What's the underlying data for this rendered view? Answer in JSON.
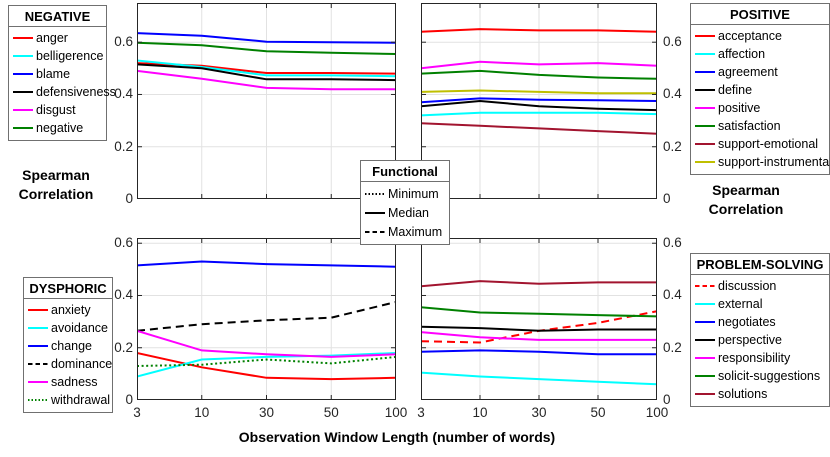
{
  "labels": {
    "ylabel_line1": "Spearman",
    "ylabel_line2": "Correlation",
    "xlabel": "Observation Window Length (number of words)"
  },
  "colors": {
    "red": "#ff0000",
    "cyan": "#00ffff",
    "blue": "#0000ff",
    "black": "#000000",
    "magenta": "#ff00ff",
    "green": "#008000",
    "dark_red": "#a2142f",
    "dark_yellow": "#bfbf00",
    "grid": "#e2e2e2",
    "axis": "#262626"
  },
  "chart_data": [
    {
      "id": "negative",
      "type": "line",
      "category": "NEGATIVE",
      "position": "top-left",
      "x": [
        3,
        10,
        30,
        50,
        100
      ],
      "x_scale": "equally-spaced-ticks",
      "ylim": [
        0,
        0.75
      ],
      "yticks": [
        0,
        0.2,
        0.4,
        0.6
      ],
      "ytick_side": "left",
      "xtick_labels_visible": false,
      "grid": true,
      "series": [
        {
          "name": "anger",
          "color": "#ff0000",
          "line_style": "solid",
          "values": [
            0.52,
            0.51,
            0.482,
            0.482,
            0.48
          ]
        },
        {
          "name": "belligerence",
          "color": "#00ffff",
          "line_style": "solid",
          "values": [
            0.53,
            0.505,
            0.473,
            0.473,
            0.47
          ]
        },
        {
          "name": "blame",
          "color": "#0000ff",
          "line_style": "solid",
          "values": [
            0.635,
            0.625,
            0.602,
            0.6,
            0.598
          ]
        },
        {
          "name": "defensiveness",
          "color": "#000000",
          "line_style": "solid",
          "values": [
            0.515,
            0.5,
            0.458,
            0.458,
            0.455
          ]
        },
        {
          "name": "disgust",
          "color": "#ff00ff",
          "line_style": "solid",
          "values": [
            0.49,
            0.46,
            0.425,
            0.42,
            0.42
          ]
        },
        {
          "name": "negative",
          "color": "#008000",
          "line_style": "solid",
          "values": [
            0.598,
            0.588,
            0.565,
            0.56,
            0.555
          ]
        }
      ]
    },
    {
      "id": "positive",
      "type": "line",
      "category": "POSITIVE",
      "position": "top-right",
      "x": [
        3,
        10,
        30,
        50,
        100
      ],
      "x_scale": "equally-spaced-ticks",
      "ylim": [
        0,
        0.75
      ],
      "yticks": [
        0,
        0.2,
        0.4,
        0.6
      ],
      "ytick_side": "right",
      "xtick_labels_visible": false,
      "grid": true,
      "series": [
        {
          "name": "acceptance",
          "color": "#ff0000",
          "line_style": "solid",
          "values": [
            0.64,
            0.65,
            0.645,
            0.645,
            0.64
          ]
        },
        {
          "name": "affection",
          "color": "#00ffff",
          "line_style": "solid",
          "values": [
            0.32,
            0.33,
            0.33,
            0.33,
            0.325
          ]
        },
        {
          "name": "agreement",
          "color": "#0000ff",
          "line_style": "solid",
          "values": [
            0.37,
            0.385,
            0.38,
            0.378,
            0.375
          ]
        },
        {
          "name": "define",
          "color": "#000000",
          "line_style": "solid",
          "values": [
            0.355,
            0.375,
            0.355,
            0.345,
            0.34
          ]
        },
        {
          "name": "positive",
          "color": "#ff00ff",
          "line_style": "solid",
          "values": [
            0.5,
            0.525,
            0.515,
            0.52,
            0.51
          ]
        },
        {
          "name": "satisfaction",
          "color": "#008000",
          "line_style": "solid",
          "values": [
            0.48,
            0.49,
            0.475,
            0.465,
            0.46
          ]
        },
        {
          "name": "support-emotional",
          "color": "#a2142f",
          "line_style": "solid",
          "values": [
            0.29,
            0.28,
            0.27,
            0.26,
            0.25
          ]
        },
        {
          "name": "support-instrumental",
          "color": "#bfbf00",
          "line_style": "solid",
          "values": [
            0.41,
            0.415,
            0.41,
            0.405,
            0.405
          ]
        }
      ]
    },
    {
      "id": "dysphoric",
      "type": "line",
      "category": "DYSPHORIC",
      "position": "bottom-left",
      "x": [
        3,
        10,
        30,
        50,
        100
      ],
      "x_scale": "equally-spaced-ticks",
      "ylim": [
        0,
        0.62
      ],
      "yticks": [
        0,
        0.2,
        0.4,
        0.6
      ],
      "ytick_side": "left",
      "xtick_labels_visible": true,
      "grid": true,
      "series": [
        {
          "name": "anxiety",
          "color": "#ff0000",
          "line_style": "solid",
          "values": [
            0.18,
            0.125,
            0.085,
            0.08,
            0.085
          ]
        },
        {
          "name": "avoidance",
          "color": "#00ffff",
          "line_style": "solid",
          "values": [
            0.09,
            0.155,
            0.165,
            0.17,
            0.18
          ]
        },
        {
          "name": "change",
          "color": "#0000ff",
          "line_style": "solid",
          "values": [
            0.515,
            0.53,
            0.52,
            0.515,
            0.51
          ]
        },
        {
          "name": "dominance",
          "color": "#000000",
          "line_style": "dashed",
          "values": [
            0.265,
            0.29,
            0.305,
            0.315,
            0.375
          ]
        },
        {
          "name": "sadness",
          "color": "#ff00ff",
          "line_style": "solid",
          "values": [
            0.265,
            0.19,
            0.175,
            0.165,
            0.175
          ]
        },
        {
          "name": "withdrawal",
          "color": "#008000",
          "line_style": "dotted",
          "values": [
            0.13,
            0.135,
            0.155,
            0.14,
            0.165
          ]
        }
      ]
    },
    {
      "id": "problem_solving",
      "type": "line",
      "category": "PROBLEM-SOLVING",
      "position": "bottom-right",
      "x": [
        3,
        10,
        30,
        50,
        100
      ],
      "x_scale": "equally-spaced-ticks",
      "ylim": [
        0,
        0.62
      ],
      "yticks": [
        0,
        0.2,
        0.4,
        0.6
      ],
      "ytick_side": "right",
      "xtick_labels_visible": true,
      "grid": true,
      "series": [
        {
          "name": "discussion",
          "color": "#ff0000",
          "line_style": "dashed",
          "values": [
            0.225,
            0.22,
            0.265,
            0.295,
            0.34
          ]
        },
        {
          "name": "external",
          "color": "#00ffff",
          "line_style": "solid",
          "values": [
            0.105,
            0.09,
            0.08,
            0.07,
            0.06
          ]
        },
        {
          "name": "negotiates",
          "color": "#0000ff",
          "line_style": "solid",
          "values": [
            0.185,
            0.19,
            0.185,
            0.175,
            0.175
          ]
        },
        {
          "name": "perspective",
          "color": "#000000",
          "line_style": "solid",
          "values": [
            0.28,
            0.275,
            0.265,
            0.27,
            0.27
          ]
        },
        {
          "name": "responsibility",
          "color": "#ff00ff",
          "line_style": "solid",
          "values": [
            0.26,
            0.24,
            0.23,
            0.23,
            0.23
          ]
        },
        {
          "name": "solicit-suggestions",
          "color": "#008000",
          "line_style": "solid",
          "values": [
            0.355,
            0.335,
            0.33,
            0.325,
            0.32
          ]
        },
        {
          "name": "solutions",
          "color": "#a2142f",
          "line_style": "solid",
          "values": [
            0.435,
            0.455,
            0.445,
            0.45,
            0.45
          ]
        }
      ]
    }
  ],
  "legends": {
    "negative": {
      "title": "NEGATIVE",
      "items": [
        {
          "label": "anger",
          "color": "#ff0000",
          "line_style": "solid"
        },
        {
          "label": "belligerence",
          "color": "#00ffff",
          "line_style": "solid"
        },
        {
          "label": "blame",
          "color": "#0000ff",
          "line_style": "solid"
        },
        {
          "label": "defensiveness",
          "color": "#000000",
          "line_style": "solid"
        },
        {
          "label": "disgust",
          "color": "#ff00ff",
          "line_style": "solid"
        },
        {
          "label": "negative",
          "color": "#008000",
          "line_style": "solid"
        }
      ]
    },
    "positive": {
      "title": "POSITIVE",
      "items": [
        {
          "label": "acceptance",
          "color": "#ff0000",
          "line_style": "solid"
        },
        {
          "label": "affection",
          "color": "#00ffff",
          "line_style": "solid"
        },
        {
          "label": "agreement",
          "color": "#0000ff",
          "line_style": "solid"
        },
        {
          "label": "define",
          "color": "#000000",
          "line_style": "solid"
        },
        {
          "label": "positive",
          "color": "#ff00ff",
          "line_style": "solid"
        },
        {
          "label": "satisfaction",
          "color": "#008000",
          "line_style": "solid"
        },
        {
          "label": "support-emotional",
          "color": "#a2142f",
          "line_style": "solid"
        },
        {
          "label": "support-instrumental",
          "color": "#bfbf00",
          "line_style": "solid"
        }
      ]
    },
    "functional": {
      "title": "Functional",
      "items": [
        {
          "label": "Minimum",
          "color": "#000000",
          "line_style": "dotted"
        },
        {
          "label": "Median",
          "color": "#000000",
          "line_style": "solid"
        },
        {
          "label": "Maximum",
          "color": "#000000",
          "line_style": "dashed"
        }
      ]
    },
    "dysphoric": {
      "title": "DYSPHORIC",
      "items": [
        {
          "label": "anxiety",
          "color": "#ff0000",
          "line_style": "solid"
        },
        {
          "label": "avoidance",
          "color": "#00ffff",
          "line_style": "solid"
        },
        {
          "label": "change",
          "color": "#0000ff",
          "line_style": "solid"
        },
        {
          "label": "dominance",
          "color": "#000000",
          "line_style": "dashed"
        },
        {
          "label": "sadness",
          "color": "#ff00ff",
          "line_style": "solid"
        },
        {
          "label": "withdrawal",
          "color": "#008000",
          "line_style": "dotted"
        }
      ]
    },
    "problem_solving": {
      "title": "PROBLEM-SOLVING",
      "items": [
        {
          "label": "discussion",
          "color": "#ff0000",
          "line_style": "dashed"
        },
        {
          "label": "external",
          "color": "#00ffff",
          "line_style": "solid"
        },
        {
          "label": "negotiates",
          "color": "#0000ff",
          "line_style": "solid"
        },
        {
          "label": "perspective",
          "color": "#000000",
          "line_style": "solid"
        },
        {
          "label": "responsibility",
          "color": "#ff00ff",
          "line_style": "solid"
        },
        {
          "label": "solicit-suggestions",
          "color": "#008000",
          "line_style": "solid"
        },
        {
          "label": "solutions",
          "color": "#a2142f",
          "line_style": "solid"
        }
      ]
    }
  }
}
